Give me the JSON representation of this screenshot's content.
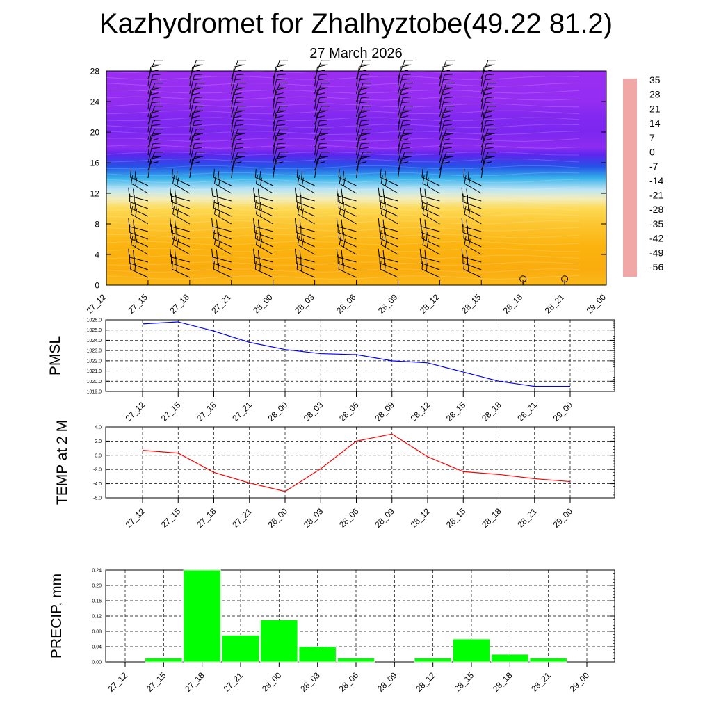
{
  "page": {
    "title": "Kazhydromet for Zhalhyztobe(49.22 81.2)",
    "subtitle": "27 March 2026"
  },
  "chart_data": [
    {
      "type": "heatmap",
      "title": "",
      "x_tick_labels": [
        "27_12",
        "27_15",
        "27_18",
        "27_21",
        "28_00",
        "28_03",
        "28_06",
        "28_09",
        "28_12",
        "28_15",
        "28_18",
        "28_21",
        "29_00"
      ],
      "y_ticks": [
        0,
        4,
        8,
        12,
        16,
        20,
        24,
        28
      ],
      "ylim": [
        0,
        28
      ],
      "colorbar": {
        "labels": [
          "35",
          "28",
          "21",
          "14",
          "7",
          "0",
          "-7",
          "-14",
          "-21",
          "-28",
          "-35",
          "-42",
          "-49",
          "-56"
        ],
        "range": [
          -60,
          37
        ],
        "stops": [
          {
            "v": 37,
            "c": "#f2a7a7"
          },
          {
            "v": 30,
            "c": "#e01818"
          },
          {
            "v": 20,
            "c": "#f03c10"
          },
          {
            "v": 12,
            "c": "#f57e0e"
          },
          {
            "v": 4,
            "c": "#fbb30e"
          },
          {
            "v": -4,
            "c": "#fde66a"
          },
          {
            "v": -11,
            "c": "#e9f3f8"
          },
          {
            "v": -18,
            "c": "#7fd2ef"
          },
          {
            "v": -26,
            "c": "#1ea6e8"
          },
          {
            "v": -34,
            "c": "#1f66e6"
          },
          {
            "v": -44,
            "c": "#2f35e8"
          },
          {
            "v": -52,
            "c": "#6a22ee"
          },
          {
            "v": -60,
            "c": "#9a2ef2"
          }
        ]
      },
      "temperature_profile": [
        {
          "z": 0,
          "t": 3
        },
        {
          "z": 2,
          "t": 5
        },
        {
          "z": 5,
          "t": 4
        },
        {
          "z": 8,
          "t": 1
        },
        {
          "z": 10,
          "t": -2
        },
        {
          "z": 11.3,
          "t": -8
        },
        {
          "z": 12.5,
          "t": -14
        },
        {
          "z": 14,
          "t": -24
        },
        {
          "z": 15.5,
          "t": -38
        },
        {
          "z": 17,
          "t": -50
        },
        {
          "z": 18,
          "t": -58
        },
        {
          "z": 20,
          "t": -55
        },
        {
          "z": 22,
          "t": -56
        },
        {
          "z": 24,
          "t": -59
        },
        {
          "z": 28,
          "t": -60
        }
      ],
      "wind_barb_levels": [
        1,
        2,
        3,
        4,
        5,
        6,
        7,
        8,
        9,
        10,
        11,
        12,
        13,
        14,
        15,
        16,
        17,
        18,
        19,
        20,
        21,
        22,
        23,
        24,
        25,
        26,
        27
      ],
      "calm_markers": [
        "28_18",
        "28_21"
      ]
    },
    {
      "type": "line",
      "ylabel": "PMSL",
      "x_tick_labels": [
        "27_12",
        "27_15",
        "27_18",
        "27_21",
        "28_00",
        "28_03",
        "28_06",
        "28_09",
        "28_12",
        "28_15",
        "28_18",
        "28_21",
        "29_00"
      ],
      "y_tick_labels": [
        "1026.0",
        "1025.0",
        "1024.0",
        "1023.0",
        "1022.0",
        "1021.0",
        "1020.0",
        "1019.0"
      ],
      "ylim": [
        1019,
        1026
      ],
      "series": [
        {
          "color": "#0000ff",
          "values": [
            1025.6,
            1025.8,
            1024.9,
            1023.8,
            1023.1,
            1022.7,
            1022.6,
            1022.0,
            1021.8,
            1020.9,
            1020.0,
            1019.5,
            1019.5
          ]
        }
      ]
    },
    {
      "type": "line",
      "ylabel": "TEMP at 2 M",
      "x_tick_labels": [
        "27_12",
        "27_15",
        "27_18",
        "27_21",
        "28_00",
        "28_03",
        "28_06",
        "28_09",
        "28_12",
        "28_15",
        "28_18",
        "28_21",
        "29_00"
      ],
      "y_tick_labels": [
        "4.0",
        "2.0",
        "0.0",
        "-2.0",
        "-4.0",
        "-6.0"
      ],
      "ylim": [
        -6,
        4
      ],
      "series": [
        {
          "color": "#ff0000",
          "values": [
            0.7,
            0.3,
            -2.4,
            -3.9,
            -5.1,
            -1.9,
            2.0,
            3.0,
            -0.2,
            -2.3,
            -2.7,
            -3.3,
            -3.7
          ]
        }
      ]
    },
    {
      "type": "bar",
      "ylabel": "PRECIP, mm",
      "x_tick_labels": [
        "27_12",
        "27_15",
        "27_18",
        "27_21",
        "28_00",
        "28_03",
        "28_06",
        "28_09",
        "28_12",
        "28_15",
        "28_18",
        "28_21",
        "29_00"
      ],
      "y_tick_labels": [
        "0.24",
        "0.20",
        "0.16",
        "0.12",
        "0.08",
        "0.04",
        "0.00"
      ],
      "ylim": [
        0,
        0.24
      ],
      "bar_color": "#00ff00",
      "values": [
        0,
        0.01,
        0.24,
        0.07,
        0.11,
        0.04,
        0.01,
        0,
        0.01,
        0.06,
        0.02,
        0.01,
        0
      ]
    }
  ]
}
